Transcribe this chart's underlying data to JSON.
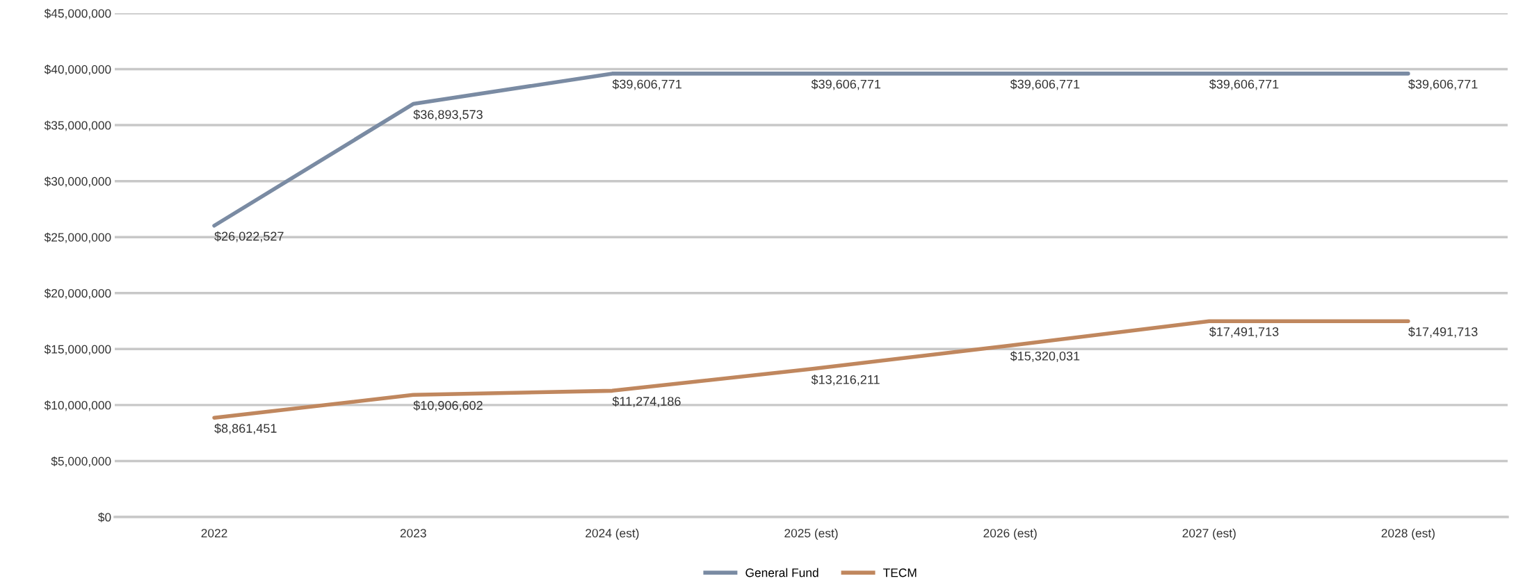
{
  "chart_data": {
    "type": "line",
    "categories": [
      "2022",
      "2023",
      "2024 (est)",
      "2025 (est)",
      "2026 (est)",
      "2027 (est)",
      "2028 (est)"
    ],
    "series": [
      {
        "name": "General Fund",
        "color": "#7a8ba3",
        "values": [
          26022527,
          36893573,
          39606771,
          39606771,
          39606771,
          39606771,
          39606771
        ],
        "value_labels": [
          "$26,022,527",
          "$36,893,573",
          "$39,606,771",
          "$39,606,771",
          "$39,606,771",
          "$39,606,771",
          "$39,606,771"
        ]
      },
      {
        "name": "TECM",
        "color": "#c0875e",
        "values": [
          8861451,
          10906602,
          11274186,
          13216211,
          15320031,
          17491713,
          17491713
        ],
        "value_labels": [
          "$8,861,451",
          "$10,906,602",
          "$11,274,186",
          "$13,216,211",
          "$15,320,031",
          "$17,491,713",
          "$17,491,713"
        ]
      }
    ],
    "ylim": [
      0,
      45000000
    ],
    "yticks": [
      {
        "value": 0,
        "label": "$0"
      },
      {
        "value": 5000000,
        "label": "$5,000,000"
      },
      {
        "value": 10000000,
        "label": "$10,000,000"
      },
      {
        "value": 15000000,
        "label": "$15,000,000"
      },
      {
        "value": 20000000,
        "label": "$20,000,000"
      },
      {
        "value": 25000000,
        "label": "$25,000,000"
      },
      {
        "value": 30000000,
        "label": "$30,000,000"
      },
      {
        "value": 35000000,
        "label": "$35,000,000"
      },
      {
        "value": 40000000,
        "label": "$40,000,000"
      },
      {
        "value": 45000000,
        "label": "$45,000,000"
      }
    ],
    "grid": "y",
    "legend": "bottom",
    "marker": "none",
    "line_style": "solid"
  }
}
